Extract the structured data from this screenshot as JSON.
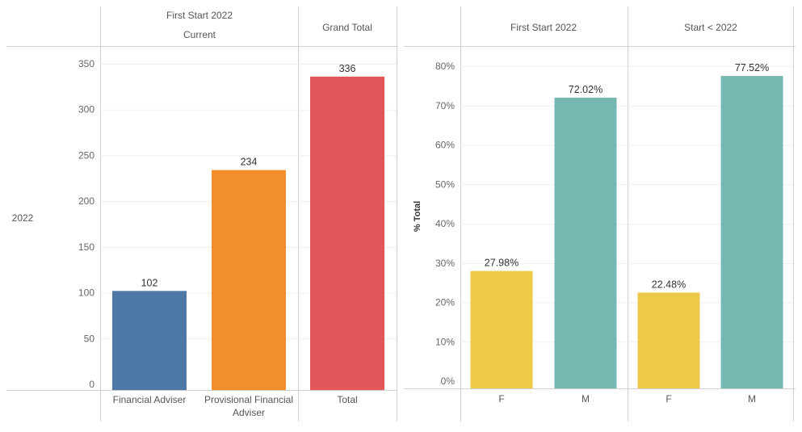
{
  "chart_data": [
    {
      "type": "bar",
      "header_top": "First Start 2022",
      "header_sub": "Current",
      "header_total": "Grand Total",
      "row_label": "2022",
      "categories": [
        "Financial Adviser",
        "Provisional Financial Adviser",
        "Total"
      ],
      "values": [
        102,
        234,
        336
      ],
      "colors": [
        "#4e79a7",
        "#f28e2b",
        "#e15759"
      ],
      "yticks": [
        "0",
        "50",
        "100",
        "150",
        "200",
        "250",
        "300",
        "350"
      ],
      "ylim": [
        0,
        370
      ],
      "ylabel": "",
      "grid": true
    },
    {
      "type": "bar",
      "ylabel": "% Total",
      "yticks": [
        "0%",
        "10%",
        "20%",
        "30%",
        "40%",
        "50%",
        "60%",
        "70%",
        "80%"
      ],
      "ylim": [
        0,
        82
      ],
      "grid": true,
      "panels": [
        {
          "header": "First Start 2022",
          "categories": [
            "F",
            "M"
          ],
          "values": [
            27.98,
            72.02
          ],
          "labels": [
            "27.98%",
            "72.02%"
          ],
          "colors": [
            "#edc948",
            "#76b7b2"
          ]
        },
        {
          "header": "Start < 2022",
          "categories": [
            "F",
            "M"
          ],
          "values": [
            22.48,
            77.52
          ],
          "labels": [
            "22.48%",
            "77.52%"
          ],
          "colors": [
            "#edc948",
            "#76b7b2"
          ]
        }
      ]
    }
  ]
}
